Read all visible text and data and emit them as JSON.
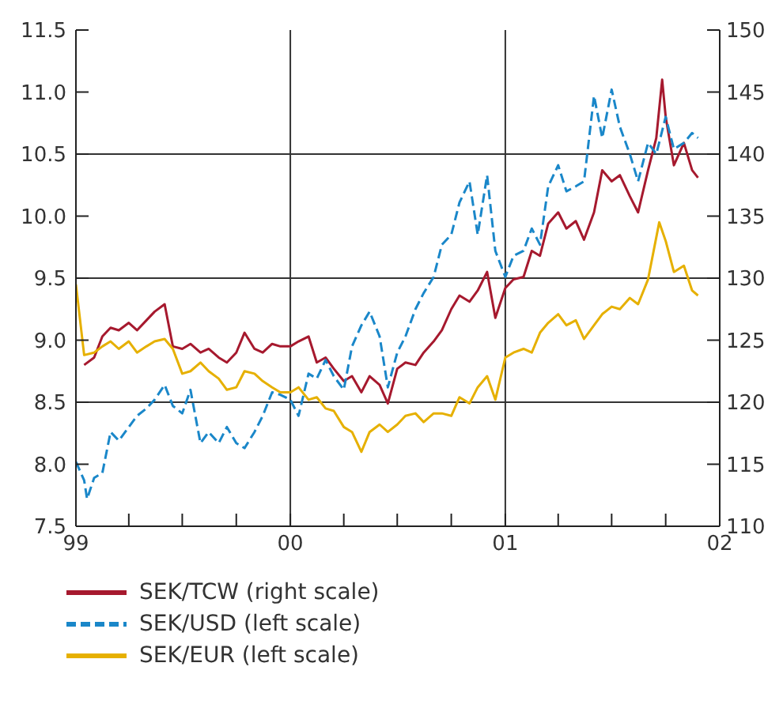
{
  "chart_data": {
    "type": "line",
    "xlim": [
      "1999-01-01",
      "2002-01-01"
    ],
    "xticks": [
      {
        "value": "1999-01-01",
        "label": "99"
      },
      {
        "value": "1999-04-01",
        "label": null
      },
      {
        "value": "1999-07-01",
        "label": null
      },
      {
        "value": "1999-10-01",
        "label": null
      },
      {
        "value": "2000-01-01",
        "label": "00"
      },
      {
        "value": "2000-04-01",
        "label": null
      },
      {
        "value": "2000-07-01",
        "label": null
      },
      {
        "value": "2000-10-01",
        "label": null
      },
      {
        "value": "2001-01-01",
        "label": "01"
      },
      {
        "value": "2001-04-01",
        "label": null
      },
      {
        "value": "2001-07-01",
        "label": null
      },
      {
        "value": "2001-10-01",
        "label": null
      },
      {
        "value": "2002-01-01",
        "label": "02"
      }
    ],
    "ylim": [
      7.5,
      11.5
    ],
    "yticks": [
      7.5,
      {
        "value": 8,
        "label": "8.0"
      },
      8.5,
      {
        "value": 9,
        "label": "9.0"
      },
      9.5,
      {
        "value": 10,
        "label": "10.0"
      },
      10.5,
      {
        "value": 11,
        "label": "11.0"
      },
      11.5
    ],
    "y2lim": [
      110,
      150
    ],
    "y2ticks": [
      110,
      115,
      120,
      125,
      130,
      135,
      140,
      145,
      150
    ],
    "legend": "bottom",
    "ref_lines": [
      {
        "axis": "y",
        "value": 8.5,
        "color": "#333333"
      },
      {
        "axis": "y",
        "value": 9.5,
        "color": "#333333"
      },
      {
        "axis": "y",
        "value": 10.5,
        "color": "#333333"
      },
      {
        "axis": "x",
        "value": "2000-01-01",
        "color": "#333333"
      },
      {
        "axis": "x",
        "value": "2001-01-01",
        "color": "#333333"
      }
    ],
    "series": [
      {
        "name": "SEK/TCW (right scale)",
        "color": "#a6192e",
        "axis": "y2",
        "line_style": "solid",
        "x": [
          "1999-01-15",
          "1999-02-01",
          "1999-02-15",
          "1999-03-01",
          "1999-03-15",
          "1999-04-01",
          "1999-04-15",
          "1999-05-01",
          "1999-05-15",
          "1999-06-01",
          "1999-06-15",
          "1999-07-01",
          "1999-07-15",
          "1999-08-01",
          "1999-08-15",
          "1999-09-01",
          "1999-09-15",
          "1999-10-01",
          "1999-10-15",
          "1999-11-01",
          "1999-11-15",
          "1999-12-01",
          "1999-12-15",
          "2000-01-01",
          "2000-01-15",
          "2000-02-01",
          "2000-02-15",
          "2000-03-01",
          "2000-03-15",
          "2000-04-01",
          "2000-04-15",
          "2000-05-01",
          "2000-05-15",
          "2000-06-01",
          "2000-06-15",
          "2000-07-01",
          "2000-07-15",
          "2000-08-01",
          "2000-08-15",
          "2000-09-01",
          "2000-09-15",
          "2000-10-01",
          "2000-10-15",
          "2000-11-01",
          "2000-11-15",
          "2000-12-01",
          "2000-12-15",
          "2001-01-01",
          "2001-01-15",
          "2001-02-01",
          "2001-02-15",
          "2001-03-01",
          "2001-03-15",
          "2001-04-01",
          "2001-04-15",
          "2001-05-01",
          "2001-05-15",
          "2001-06-01",
          "2001-06-15",
          "2001-07-01",
          "2001-07-15",
          "2001-08-01",
          "2001-08-15",
          "2001-09-01",
          "2001-09-15",
          "2001-09-25",
          "2001-10-01",
          "2001-10-15",
          "2001-11-01",
          "2001-11-15",
          "2001-11-25"
        ],
        "values": [
          123.0,
          123.6,
          125.3,
          126.0,
          125.8,
          126.4,
          125.8,
          126.6,
          127.3,
          127.9,
          124.5,
          124.3,
          124.7,
          124.0,
          124.3,
          123.6,
          123.2,
          124.0,
          125.6,
          124.3,
          124.0,
          124.7,
          124.5,
          124.5,
          124.9,
          125.3,
          123.2,
          123.6,
          122.7,
          121.7,
          122.1,
          120.8,
          122.1,
          121.4,
          119.9,
          122.7,
          123.2,
          123.0,
          124.0,
          124.9,
          125.8,
          127.5,
          128.6,
          128.1,
          129.0,
          130.5,
          126.8,
          129.2,
          129.9,
          130.1,
          132.2,
          131.8,
          134.4,
          135.3,
          134.0,
          134.6,
          133.1,
          135.3,
          138.7,
          137.8,
          138.3,
          136.6,
          135.3,
          138.7,
          141.3,
          146.0,
          143.0,
          139.1,
          140.9,
          138.7,
          138.1
        ]
      },
      {
        "name": "SEK/USD (left scale)",
        "color": "#1a87c9",
        "axis": "y",
        "line_style": "dashed",
        "x": [
          "1999-01-01",
          "1999-01-15",
          "1999-01-20",
          "1999-02-01",
          "1999-02-15",
          "1999-03-01",
          "1999-03-15",
          "1999-04-01",
          "1999-04-15",
          "1999-05-01",
          "1999-05-15",
          "1999-06-01",
          "1999-06-15",
          "1999-07-01",
          "1999-07-15",
          "1999-08-01",
          "1999-08-15",
          "1999-09-01",
          "1999-09-15",
          "1999-10-01",
          "1999-10-15",
          "1999-11-01",
          "1999-11-15",
          "1999-12-01",
          "1999-12-15",
          "2000-01-01",
          "2000-01-15",
          "2000-02-01",
          "2000-02-15",
          "2000-03-01",
          "2000-03-15",
          "2000-04-01",
          "2000-04-15",
          "2000-05-01",
          "2000-05-15",
          "2000-06-01",
          "2000-06-15",
          "2000-07-01",
          "2000-07-15",
          "2000-08-01",
          "2000-08-15",
          "2000-09-01",
          "2000-09-15",
          "2000-10-01",
          "2000-10-15",
          "2000-11-01",
          "2000-11-15",
          "2000-12-01",
          "2000-12-15",
          "2001-01-01",
          "2001-01-15",
          "2001-02-01",
          "2001-02-15",
          "2001-03-01",
          "2001-03-15",
          "2001-04-01",
          "2001-04-15",
          "2001-05-01",
          "2001-05-15",
          "2001-06-01",
          "2001-06-15",
          "2001-07-01",
          "2001-07-15",
          "2001-08-01",
          "2001-08-15",
          "2001-09-01",
          "2001-09-15",
          "2001-10-01",
          "2001-10-15",
          "2001-11-01",
          "2001-11-15",
          "2001-11-25"
        ],
        "values": [
          8.02,
          7.87,
          7.72,
          7.89,
          7.93,
          8.26,
          8.19,
          8.3,
          8.39,
          8.45,
          8.52,
          8.64,
          8.47,
          8.41,
          8.6,
          8.17,
          8.26,
          8.17,
          8.3,
          8.17,
          8.13,
          8.26,
          8.39,
          8.58,
          8.56,
          8.52,
          8.39,
          8.73,
          8.69,
          8.84,
          8.71,
          8.6,
          8.95,
          9.12,
          9.23,
          9.03,
          8.62,
          8.9,
          9.03,
          9.25,
          9.38,
          9.51,
          9.77,
          9.85,
          10.11,
          10.28,
          9.85,
          10.33,
          9.72,
          9.51,
          9.68,
          9.72,
          9.9,
          9.77,
          10.24,
          10.41,
          10.2,
          10.24,
          10.28,
          10.97,
          10.63,
          11.02,
          10.72,
          10.5,
          10.28,
          10.59,
          10.5,
          10.8,
          10.54,
          10.59,
          10.67,
          10.63
        ]
      },
      {
        "name": "SEK/EUR (left scale)",
        "color": "#e6b000",
        "axis": "y",
        "line_style": "solid",
        "x": [
          "1999-01-01",
          "1999-01-15",
          "1999-02-01",
          "1999-02-15",
          "1999-03-01",
          "1999-03-15",
          "1999-04-01",
          "1999-04-15",
          "1999-05-01",
          "1999-05-15",
          "1999-06-01",
          "1999-06-15",
          "1999-07-01",
          "1999-07-15",
          "1999-08-01",
          "1999-08-15",
          "1999-09-01",
          "1999-09-15",
          "1999-10-01",
          "1999-10-15",
          "1999-11-01",
          "1999-11-15",
          "1999-12-01",
          "1999-12-15",
          "2000-01-01",
          "2000-01-15",
          "2000-02-01",
          "2000-02-15",
          "2000-03-01",
          "2000-03-15",
          "2000-04-01",
          "2000-04-15",
          "2000-05-01",
          "2000-05-15",
          "2000-06-01",
          "2000-06-15",
          "2000-07-01",
          "2000-07-15",
          "2000-08-01",
          "2000-08-15",
          "2000-09-01",
          "2000-09-15",
          "2000-10-01",
          "2000-10-15",
          "2000-11-01",
          "2000-11-15",
          "2000-12-01",
          "2000-12-15",
          "2001-01-01",
          "2001-01-15",
          "2001-02-01",
          "2001-02-15",
          "2001-03-01",
          "2001-03-15",
          "2001-04-01",
          "2001-04-15",
          "2001-05-01",
          "2001-05-15",
          "2001-06-01",
          "2001-06-15",
          "2001-07-01",
          "2001-07-15",
          "2001-08-01",
          "2001-08-15",
          "2001-09-01",
          "2001-09-20",
          "2001-10-01",
          "2001-10-15",
          "2001-11-01",
          "2001-11-15",
          "2001-11-25"
        ],
        "values": [
          9.45,
          8.88,
          8.9,
          8.95,
          8.99,
          8.93,
          8.99,
          8.9,
          8.95,
          8.99,
          9.01,
          8.93,
          8.73,
          8.75,
          8.82,
          8.75,
          8.69,
          8.6,
          8.62,
          8.75,
          8.73,
          8.67,
          8.62,
          8.58,
          8.58,
          8.62,
          8.52,
          8.54,
          8.45,
          8.43,
          8.3,
          8.26,
          8.1,
          8.26,
          8.32,
          8.26,
          8.32,
          8.39,
          8.41,
          8.34,
          8.41,
          8.41,
          8.39,
          8.54,
          8.49,
          8.62,
          8.71,
          8.52,
          8.86,
          8.9,
          8.93,
          8.9,
          9.06,
          9.14,
          9.21,
          9.12,
          9.16,
          9.01,
          9.12,
          9.21,
          9.27,
          9.25,
          9.34,
          9.29,
          9.49,
          9.95,
          9.8,
          9.55,
          9.6,
          9.4,
          9.36
        ]
      }
    ]
  }
}
